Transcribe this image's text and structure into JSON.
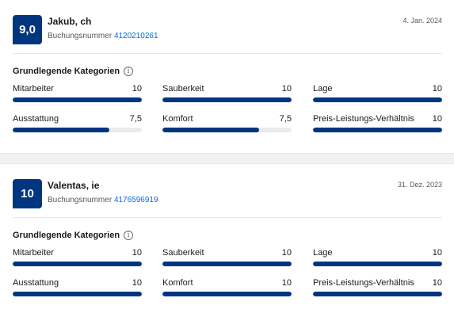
{
  "colors": {
    "accent": "#003580",
    "link": "#006ce4",
    "track": "#ebebeb"
  },
  "reviews": [
    {
      "score": "9,0",
      "name": "Jakub, ch",
      "booking_label": "Buchungsnummer",
      "booking_number": "4120210261",
      "date": "4. Jan. 2024",
      "categories_heading": "Grundlegende Kategorien",
      "info_icon": "i",
      "categories": [
        {
          "label": "Mitarbeiter",
          "value": "10",
          "score": 10
        },
        {
          "label": "Sauberkeit",
          "value": "10",
          "score": 10
        },
        {
          "label": "Lage",
          "value": "10",
          "score": 10
        },
        {
          "label": "Ausstattung",
          "value": "7,5",
          "score": 7.5
        },
        {
          "label": "Komfort",
          "value": "7,5",
          "score": 7.5
        },
        {
          "label": "Preis-Leistungs-Verhältnis",
          "value": "10",
          "score": 10
        }
      ]
    },
    {
      "score": "10",
      "name": "Valentas, ie",
      "booking_label": "Buchungsnummer",
      "booking_number": "4176596919",
      "date": "31. Dez. 2023",
      "categories_heading": "Grundlegende Kategorien",
      "info_icon": "i",
      "categories": [
        {
          "label": "Mitarbeiter",
          "value": "10",
          "score": 10
        },
        {
          "label": "Sauberkeit",
          "value": "10",
          "score": 10
        },
        {
          "label": "Lage",
          "value": "10",
          "score": 10
        },
        {
          "label": "Ausstattung",
          "value": "10",
          "score": 10
        },
        {
          "label": "Komfort",
          "value": "10",
          "score": 10
        },
        {
          "label": "Preis-Leistungs-Verhältnis",
          "value": "10",
          "score": 10
        }
      ]
    }
  ]
}
